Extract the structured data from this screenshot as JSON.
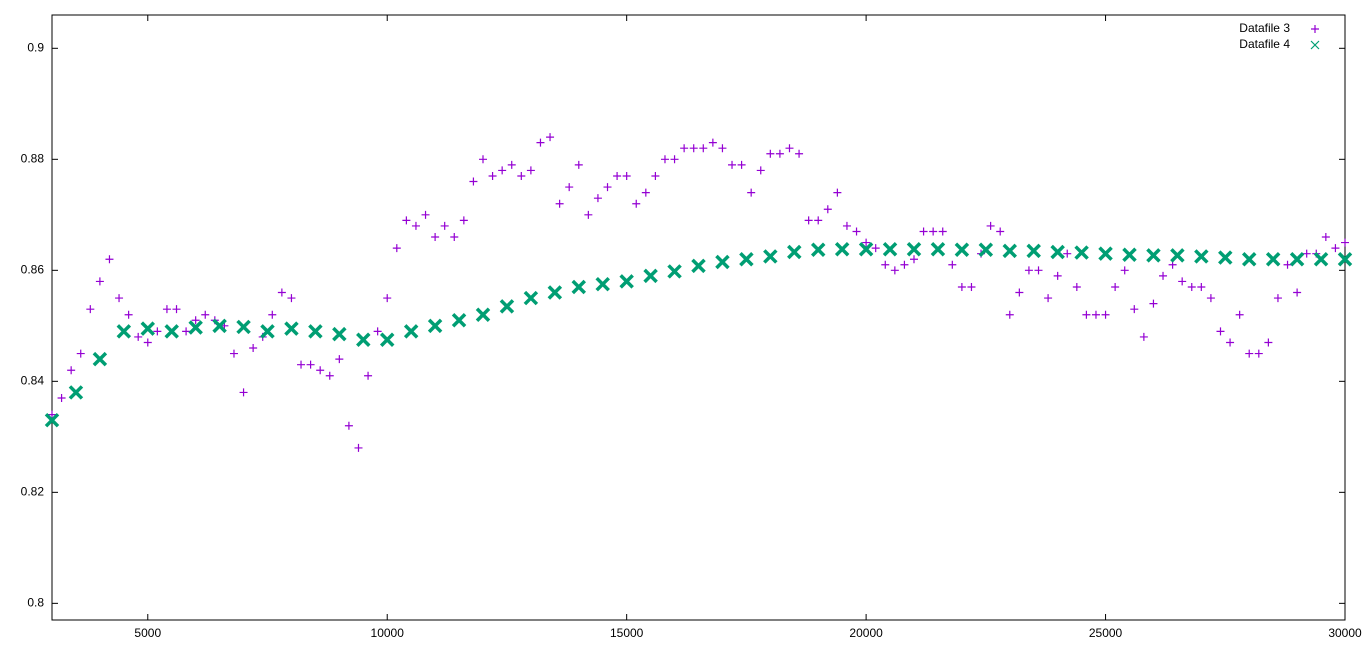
{
  "chart_data": {
    "type": "scatter",
    "xlim": [
      3000,
      30000
    ],
    "ylim": [
      0.797,
      0.906
    ],
    "xticks": [
      5000,
      10000,
      15000,
      20000,
      25000,
      30000
    ],
    "yticks": [
      0.8,
      0.82,
      0.84,
      0.86,
      0.88,
      0.9
    ],
    "legend": "top-right",
    "series": [
      {
        "name": "Datafile 3",
        "color": "#9400d3",
        "marker": "plus",
        "x": [
          3000,
          3200,
          3400,
          3600,
          3800,
          4000,
          4200,
          4400,
          4600,
          4800,
          5000,
          5200,
          5400,
          5600,
          5800,
          6000,
          6200,
          6400,
          6600,
          6800,
          7000,
          7200,
          7400,
          7600,
          7800,
          8000,
          8200,
          8400,
          8600,
          8800,
          9000,
          9200,
          9400,
          9600,
          9800,
          10000,
          10200,
          10400,
          10600,
          10800,
          11000,
          11200,
          11400,
          11600,
          11800,
          12000,
          12200,
          12400,
          12600,
          12800,
          13000,
          13200,
          13400,
          13600,
          13800,
          14000,
          14200,
          14400,
          14600,
          14800,
          15000,
          15200,
          15400,
          15600,
          15800,
          16000,
          16200,
          16400,
          16600,
          16800,
          17000,
          17200,
          17400,
          17600,
          17800,
          18000,
          18200,
          18400,
          18600,
          18800,
          19000,
          19200,
          19400,
          19600,
          19800,
          20000,
          20200,
          20400,
          20600,
          20800,
          21000,
          21200,
          21400,
          21600,
          21800,
          22000,
          22200,
          22400,
          22600,
          22800,
          23000,
          23200,
          23400,
          23600,
          23800,
          24000,
          24200,
          24400,
          24600,
          24800,
          25000,
          25200,
          25400,
          25600,
          25800,
          26000,
          26200,
          26400,
          26600,
          26800,
          27000,
          27200,
          27400,
          27600,
          27800,
          28000,
          28200,
          28400,
          28600,
          28800,
          29000,
          29200,
          29400,
          29600,
          29800,
          30000
        ],
        "values": [
          0.834,
          0.837,
          0.842,
          0.845,
          0.853,
          0.858,
          0.862,
          0.855,
          0.852,
          0.848,
          0.847,
          0.849,
          0.853,
          0.853,
          0.849,
          0.851,
          0.852,
          0.851,
          0.85,
          0.845,
          0.838,
          0.846,
          0.848,
          0.852,
          0.856,
          0.855,
          0.843,
          0.843,
          0.842,
          0.841,
          0.844,
          0.832,
          0.828,
          0.841,
          0.849,
          0.855,
          0.864,
          0.869,
          0.868,
          0.87,
          0.866,
          0.868,
          0.866,
          0.869,
          0.876,
          0.88,
          0.877,
          0.878,
          0.879,
          0.877,
          0.878,
          0.883,
          0.884,
          0.872,
          0.875,
          0.879,
          0.87,
          0.873,
          0.875,
          0.877,
          0.877,
          0.872,
          0.874,
          0.877,
          0.88,
          0.88,
          0.882,
          0.882,
          0.882,
          0.883,
          0.882,
          0.879,
          0.879,
          0.874,
          0.878,
          0.881,
          0.881,
          0.882,
          0.881,
          0.869,
          0.869,
          0.871,
          0.874,
          0.868,
          0.867,
          0.865,
          0.864,
          0.861,
          0.86,
          0.861,
          0.862,
          0.867,
          0.867,
          0.867,
          0.861,
          0.857,
          0.857,
          0.863,
          0.868,
          0.867,
          0.852,
          0.856,
          0.86,
          0.86,
          0.855,
          0.859,
          0.863,
          0.857,
          0.852,
          0.852,
          0.852,
          0.857,
          0.86,
          0.853,
          0.848,
          0.854,
          0.859,
          0.861,
          0.858,
          0.857,
          0.857,
          0.855,
          0.849,
          0.847,
          0.852,
          0.845,
          0.845,
          0.847,
          0.855,
          0.861,
          0.856,
          0.863,
          0.863,
          0.866,
          0.864,
          0.865
        ]
      },
      {
        "name": "Datafile 4",
        "color": "#009e73",
        "marker": "cross",
        "x": [
          3000,
          3500,
          4000,
          4500,
          5000,
          5500,
          6000,
          6500,
          7000,
          7500,
          8000,
          8500,
          9000,
          9500,
          10000,
          10500,
          11000,
          11500,
          12000,
          12500,
          13000,
          13500,
          14000,
          14500,
          15000,
          15500,
          16000,
          16500,
          17000,
          17500,
          18000,
          18500,
          19000,
          19500,
          20000,
          20500,
          21000,
          21500,
          22000,
          22500,
          23000,
          23500,
          24000,
          24500,
          25000,
          25500,
          26000,
          26500,
          27000,
          27500,
          28000,
          28500,
          29000,
          29500,
          30000
        ],
        "values": [
          0.833,
          0.838,
          0.844,
          0.849,
          0.8495,
          0.849,
          0.8497,
          0.85,
          0.8498,
          0.849,
          0.8495,
          0.849,
          0.8485,
          0.8475,
          0.8475,
          0.849,
          0.85,
          0.851,
          0.852,
          0.8535,
          0.855,
          0.856,
          0.857,
          0.8575,
          0.858,
          0.859,
          0.8598,
          0.8608,
          0.8615,
          0.862,
          0.8625,
          0.8633,
          0.8637,
          0.8638,
          0.8638,
          0.8638,
          0.8638,
          0.8638,
          0.8637,
          0.8637,
          0.8635,
          0.8635,
          0.8633,
          0.8632,
          0.863,
          0.8628,
          0.8627,
          0.8627,
          0.8625,
          0.8623,
          0.862,
          0.862,
          0.862,
          0.862,
          0.862
        ]
      }
    ]
  }
}
